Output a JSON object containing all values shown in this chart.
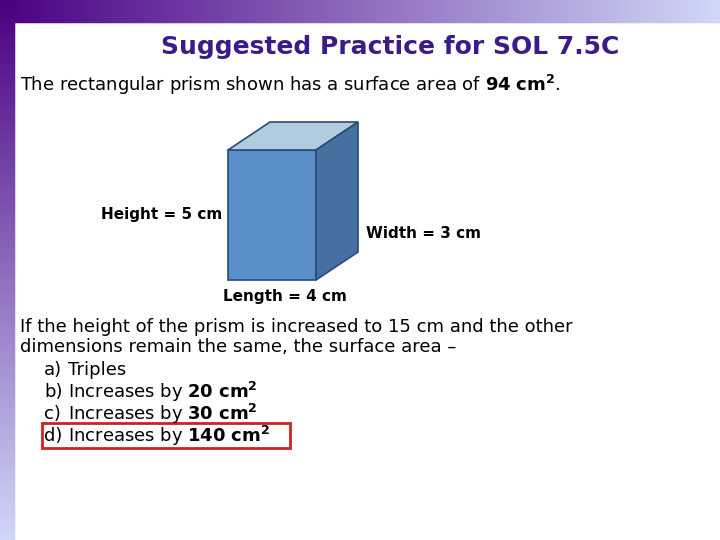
{
  "title": "Suggested Practice for SOL 7.5C",
  "title_color": "#3D1A8A",
  "title_fontsize": 18,
  "bg_color": "#FFFFFF",
  "border_dark_color": "#4B0082",
  "border_light_color": "#C8D0F0",
  "line1": "The rectangular prism shown has a surface area of ",
  "height_label": "Height = 5 cm",
  "width_label": "Width = 3 cm",
  "length_label": "Length = 4 cm",
  "question_line1": "If the height of the prism is increased to 15 cm and the other",
  "question_line2": "dimensions remain the same, the surface area –",
  "option_a_label": "a)",
  "option_a_text": "Triples",
  "option_b_label": "b)",
  "option_c_label": "c)",
  "option_d_label": "d)",
  "box_color": "#CC2222",
  "text_color": "#000000",
  "prism_front_color": "#5B8FC9",
  "prism_top_color": "#B0CCDF",
  "prism_side_color": "#4570A0",
  "body_fontsize": 13,
  "label_fontsize": 11,
  "prism_edge_color": "#2A4A7A"
}
